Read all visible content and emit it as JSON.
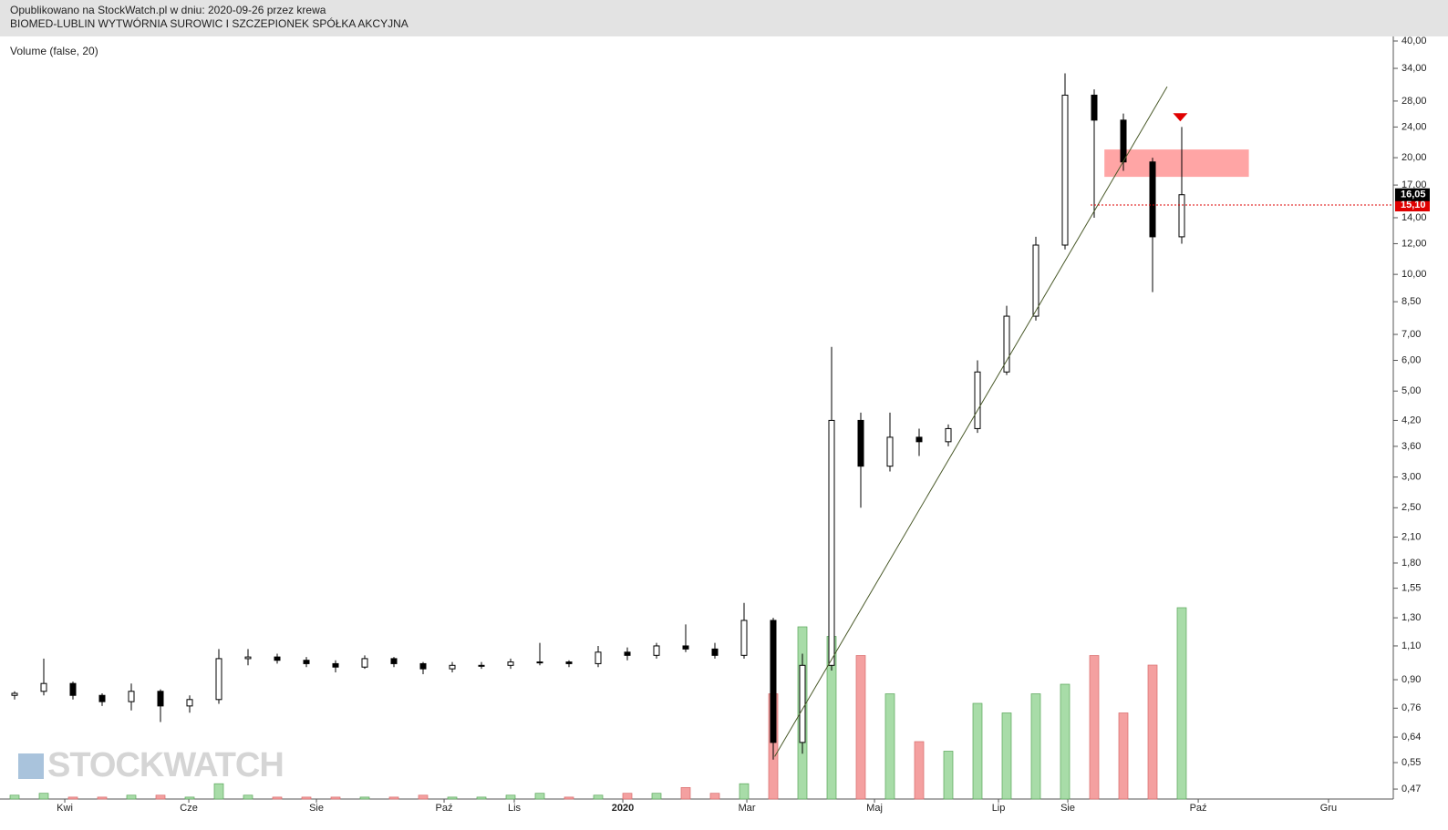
{
  "chart_data": {
    "type": "candlestick",
    "header": [
      "Opublikowano na StockWatch.pl w dniu: 2020-09-26 przez krewa",
      "BIOMED-LUBLIN WYTWÓRNIA SUROWIC I SZCZEPIONEK SPÓŁKA AKCYJNA"
    ],
    "indicator_label": "Volume (false, 20)",
    "watermark": "STOCKWATCH",
    "log_scale": true,
    "xlim": [
      0,
      95.5
    ],
    "xticks": [
      {
        "value": 4.44,
        "label": "Kwi"
      },
      {
        "value": 12.94,
        "label": "Cze"
      },
      {
        "value": 21.69,
        "label": "Sie"
      },
      {
        "value": 30.44,
        "label": "Paź"
      },
      {
        "value": 35.25,
        "label": "Lis"
      },
      {
        "value": 42.69,
        "label": "2020"
      },
      {
        "value": 51.19,
        "label": "Mar"
      },
      {
        "value": 59.94,
        "label": "Maj"
      },
      {
        "value": 68.44,
        "label": "Lip"
      },
      {
        "value": 73.19,
        "label": "Sie"
      },
      {
        "value": 82.13,
        "label": "Paź"
      },
      {
        "value": 91.06,
        "label": "Gru"
      }
    ],
    "ylim": [
      0.443,
      41.1
    ],
    "yticks": [
      {
        "value": 40,
        "label": "40,00"
      },
      {
        "value": 34,
        "label": "34,00"
      },
      {
        "value": 28,
        "label": "28,00"
      },
      {
        "value": 24,
        "label": "24,00"
      },
      {
        "value": 20,
        "label": "20,00"
      },
      {
        "value": 17,
        "label": "17,00"
      },
      {
        "value": 14,
        "label": "14,00"
      },
      {
        "value": 12,
        "label": "12,00"
      },
      {
        "value": 10,
        "label": "10,00"
      },
      {
        "value": 8.5,
        "label": "8,50"
      },
      {
        "value": 7,
        "label": "7,00"
      },
      {
        "value": 6,
        "label": "6,00"
      },
      {
        "value": 5,
        "label": "5,00"
      },
      {
        "value": 4.2,
        "label": "4,20"
      },
      {
        "value": 3.6,
        "label": "3,60"
      },
      {
        "value": 3,
        "label": "3,00"
      },
      {
        "value": 2.5,
        "label": "2,50"
      },
      {
        "value": 2.1,
        "label": "2,10"
      },
      {
        "value": 1.8,
        "label": "1,80"
      },
      {
        "value": 1.55,
        "label": "1,55"
      },
      {
        "value": 1.3,
        "label": "1,30"
      },
      {
        "value": 1.1,
        "label": "1,10"
      },
      {
        "value": 0.9,
        "label": "0,90"
      },
      {
        "value": 0.76,
        "label": "0,76"
      },
      {
        "value": 0.64,
        "label": "0,64"
      },
      {
        "value": 0.55,
        "label": "0,55"
      },
      {
        "value": 0.47,
        "label": "0,47"
      }
    ],
    "x": [
      1,
      3,
      5,
      7,
      9,
      11,
      13,
      15,
      17,
      19,
      21,
      23,
      25,
      27,
      29,
      31,
      33,
      35,
      37,
      39,
      41,
      43,
      45,
      47,
      49,
      51,
      53,
      55,
      57,
      59,
      61,
      63,
      65,
      67,
      69,
      71,
      73,
      75,
      77,
      79,
      81
    ],
    "open": [
      0.82,
      0.84,
      0.88,
      0.82,
      0.79,
      0.84,
      0.77,
      0.8,
      1.02,
      1.03,
      1.01,
      0.99,
      0.97,
      1.02,
      0.99,
      0.96,
      0.98,
      0.98,
      1.0,
      1.0,
      0.99,
      1.06,
      1.04,
      1.1,
      1.08,
      1.04,
      1.28,
      0.62,
      0.98,
      4.2,
      3.2,
      3.8,
      3.7,
      4.0,
      5.6,
      7.8,
      11.9,
      29,
      25,
      19.5,
      12.5
    ],
    "high": [
      0.84,
      1.02,
      0.89,
      0.83,
      0.88,
      0.85,
      0.82,
      1.08,
      1.08,
      1.05,
      1.03,
      1.01,
      1.04,
      1.03,
      1.0,
      1.0,
      1.0,
      1.02,
      1.12,
      1.01,
      1.1,
      1.09,
      1.12,
      1.25,
      1.12,
      1.42,
      1.3,
      1.05,
      6.5,
      4.4,
      4.4,
      4.0,
      4.1,
      6.0,
      8.3,
      12.5,
      33,
      30,
      26,
      20,
      24
    ],
    "low": [
      0.8,
      0.82,
      0.8,
      0.77,
      0.75,
      0.7,
      0.74,
      0.78,
      0.98,
      0.99,
      0.97,
      0.94,
      0.96,
      0.97,
      0.93,
      0.94,
      0.96,
      0.96,
      0.98,
      0.97,
      0.97,
      1.01,
      1.02,
      1.06,
      1.02,
      1.02,
      0.56,
      0.58,
      0.95,
      2.5,
      3.1,
      3.4,
      3.6,
      3.9,
      5.5,
      7.6,
      11.6,
      14,
      18.5,
      9,
      12
    ],
    "close": [
      0.83,
      0.88,
      0.82,
      0.79,
      0.84,
      0.77,
      0.8,
      1.02,
      1.03,
      1.01,
      0.99,
      0.97,
      1.02,
      0.99,
      0.96,
      0.98,
      0.98,
      1.0,
      1.0,
      0.99,
      1.06,
      1.04,
      1.1,
      1.08,
      1.04,
      1.28,
      0.62,
      0.98,
      4.2,
      3.2,
      3.8,
      3.7,
      4.0,
      5.6,
      7.8,
      11.9,
      29,
      25,
      19.5,
      12.5,
      16.05
    ],
    "volume": [
      2,
      3,
      1,
      1,
      2,
      2,
      1,
      8,
      2,
      1,
      1,
      1,
      1,
      1,
      2,
      1,
      1,
      2,
      3,
      1,
      2,
      3,
      3,
      6,
      3,
      8,
      55,
      90,
      85,
      75,
      55,
      30,
      25,
      50,
      45,
      55,
      60,
      75,
      45,
      70,
      100
    ],
    "trendline": {
      "x": [
        53.1,
        80
      ],
      "y": [
        0.57,
        30.5
      ]
    },
    "zone": {
      "x": [
        75.7,
        85.6
      ],
      "y": [
        17.85,
        21.0
      ]
    },
    "level": {
      "value": 15.1,
      "label": "15,10",
      "x": 74.75
    },
    "last_price": {
      "value": 16.05,
      "label": "16,05"
    },
    "signal_marker": {
      "x": 80.9,
      "y": 25.5
    }
  }
}
